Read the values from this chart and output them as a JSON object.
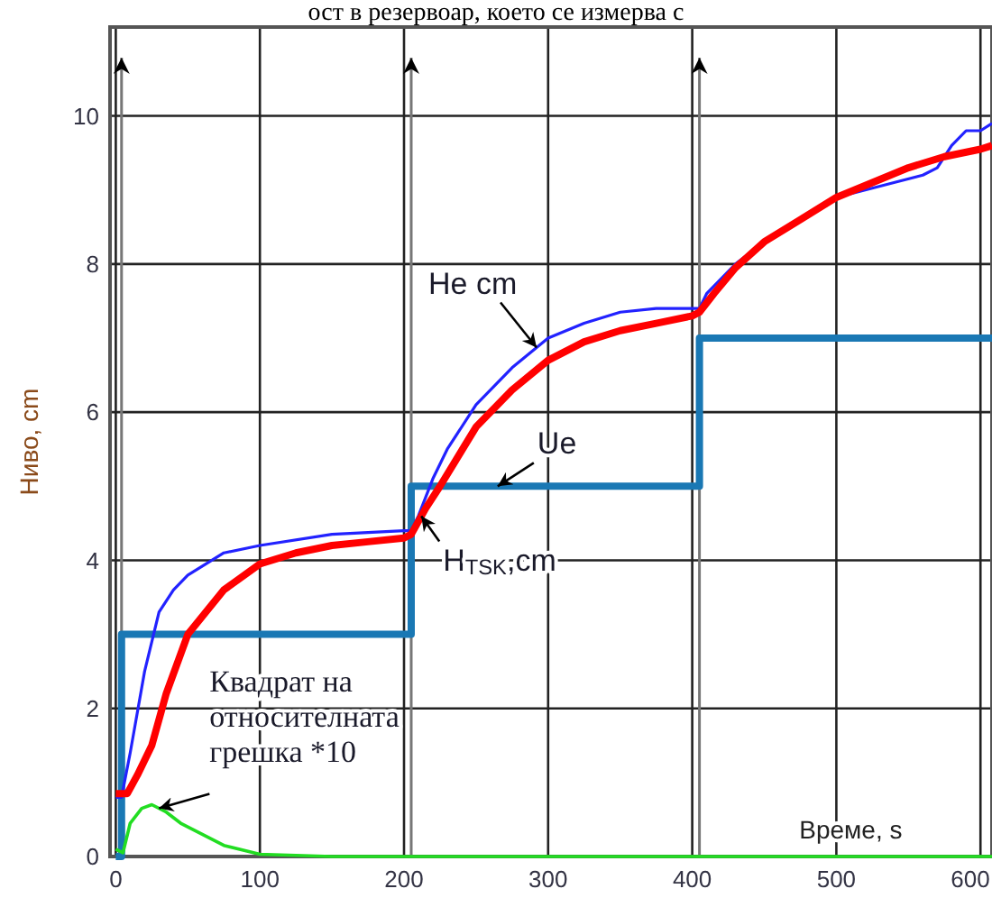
{
  "chart_data": {
    "type": "line",
    "title": "ост в резервоар, което се измерва с",
    "xlabel": "Време, s",
    "ylabel": "Ниво, cm",
    "xlim": [
      -4,
      608
    ],
    "ylim": [
      0,
      11.2
    ],
    "xticks": [
      0,
      100,
      200,
      300,
      400,
      500,
      600
    ],
    "yticks": [
      0,
      2,
      4,
      6,
      8,
      10
    ],
    "grid": true,
    "marker": "none",
    "line_style": "solid",
    "ref_lines": [
      {
        "axis": "x",
        "value": 4,
        "color": "#777777"
      },
      {
        "axis": "x",
        "value": 205,
        "color": "#777777"
      },
      {
        "axis": "x",
        "value": 405,
        "color": "#777777"
      }
    ],
    "series": [
      {
        "name": "Ue",
        "type": "step",
        "color": "#1a78b4",
        "x": [
          0,
          4,
          205,
          405,
          608
        ],
        "values": [
          0,
          3,
          5,
          7,
          7
        ]
      },
      {
        "name": "He cm",
        "color": "#2222ff",
        "x": [
          0,
          4,
          10,
          20,
          30,
          40,
          50,
          75,
          100,
          150,
          200,
          205,
          210,
          220,
          230,
          250,
          275,
          300,
          325,
          350,
          375,
          400,
          405,
          410,
          430,
          450,
          475,
          500,
          520,
          540,
          560,
          570,
          580,
          590,
          600,
          608
        ],
        "values": [
          0.8,
          0.8,
          1.4,
          2.5,
          3.3,
          3.6,
          3.8,
          4.1,
          4.2,
          4.35,
          4.4,
          4.4,
          4.6,
          5.1,
          5.5,
          6.1,
          6.6,
          7.0,
          7.2,
          7.35,
          7.4,
          7.4,
          7.4,
          7.6,
          8.0,
          8.3,
          8.6,
          8.9,
          9.0,
          9.1,
          9.2,
          9.3,
          9.6,
          9.8,
          9.8,
          9.9
        ]
      },
      {
        "name": "H$_{TSK}$,cm",
        "color": "#ff0000",
        "x": [
          0,
          8,
          15,
          25,
          35,
          50,
          75,
          100,
          125,
          150,
          175,
          200,
          205,
          215,
          225,
          250,
          275,
          300,
          325,
          350,
          375,
          400,
          405,
          415,
          430,
          450,
          475,
          500,
          525,
          550,
          575,
          600,
          608
        ],
        "values": [
          0.85,
          0.85,
          1.1,
          1.5,
          2.2,
          3.0,
          3.6,
          3.95,
          4.1,
          4.2,
          4.25,
          4.3,
          4.35,
          4.7,
          5.0,
          5.8,
          6.3,
          6.7,
          6.95,
          7.1,
          7.2,
          7.3,
          7.35,
          7.6,
          7.95,
          8.3,
          8.6,
          8.9,
          9.1,
          9.3,
          9.45,
          9.55,
          9.6
        ]
      },
      {
        "name": "Квадрат на относителната грешка *10",
        "color": "#22dd22",
        "x": [
          0,
          5,
          10,
          18,
          25,
          35,
          45,
          60,
          75,
          100,
          150,
          608
        ],
        "values": [
          0.1,
          0.05,
          0.45,
          0.65,
          0.7,
          0.6,
          0.45,
          0.3,
          0.15,
          0.03,
          0,
          0
        ]
      }
    ]
  }
}
